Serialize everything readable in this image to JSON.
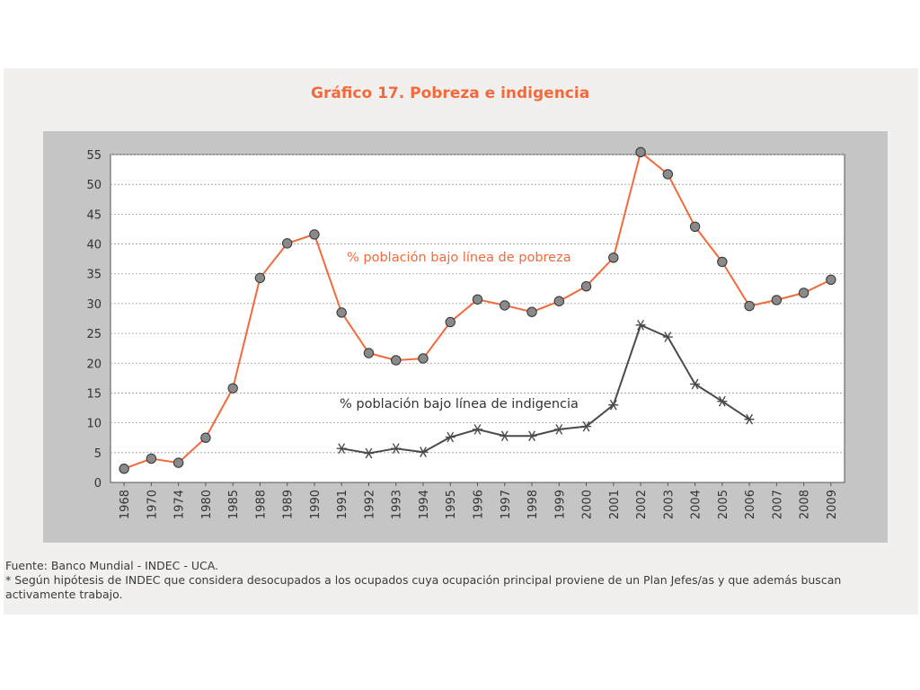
{
  "title": "Gráfico 17. Pobreza e indigencia",
  "footer": {
    "source": "Fuente: Banco Mundial - INDEC - UCA.",
    "note": "* Según hipótesis de INDEC que considera desocupados a los ocupados cuya ocupación principal proviene de un Plan Jefes/as y que además buscan activamente trabajo."
  },
  "colors": {
    "poverty": "#f26a3c",
    "indigence": "#4a4a4a",
    "marker_fill": "#8a8a8a",
    "frame": "#c5c5c5",
    "plot_bg": "#ffffff",
    "title": "#f26a3c"
  },
  "chart_data": {
    "type": "line",
    "title": "Gráfico 17. Pobreza e indigencia",
    "xlabel": "",
    "ylabel": "",
    "ylim": [
      0,
      55
    ],
    "yticks": [
      0,
      5,
      10,
      15,
      20,
      25,
      30,
      35,
      40,
      45,
      50,
      55
    ],
    "grid": true,
    "categories": [
      "1968",
      "1970",
      "1974",
      "1980",
      "1985",
      "1988",
      "1989",
      "1990",
      "1991",
      "1992",
      "1993",
      "1994",
      "1995",
      "1996",
      "1997",
      "1998",
      "1999",
      "2000",
      "2001",
      "2002",
      "2003",
      "2004",
      "2005",
      "2006",
      "2007",
      "2008",
      "2009"
    ],
    "series": [
      {
        "name": "% población bajo línea de pobreza",
        "marker": "circle",
        "values": [
          2.3,
          4.0,
          3.3,
          7.5,
          15.8,
          34.3,
          40.1,
          41.6,
          28.5,
          21.7,
          20.5,
          20.8,
          26.9,
          30.7,
          29.7,
          28.6,
          30.4,
          32.9,
          37.7,
          56.5,
          51.7,
          42.9,
          37.0,
          29.6,
          30.6,
          31.8,
          34.0
        ]
      },
      {
        "name": "% población bajo línea de indigencia",
        "marker": "star",
        "values": [
          null,
          null,
          null,
          null,
          null,
          null,
          null,
          null,
          5.7,
          4.9,
          5.7,
          5.1,
          7.6,
          8.9,
          7.8,
          7.8,
          8.9,
          9.4,
          13.0,
          26.4,
          24.4,
          16.5,
          13.6,
          10.6,
          null,
          null,
          null
        ]
      }
    ],
    "annotations": [
      {
        "text": "% población bajo línea de pobreza",
        "series": 0
      },
      {
        "text": "% población bajo línea de indigencia",
        "series": 1
      }
    ]
  }
}
